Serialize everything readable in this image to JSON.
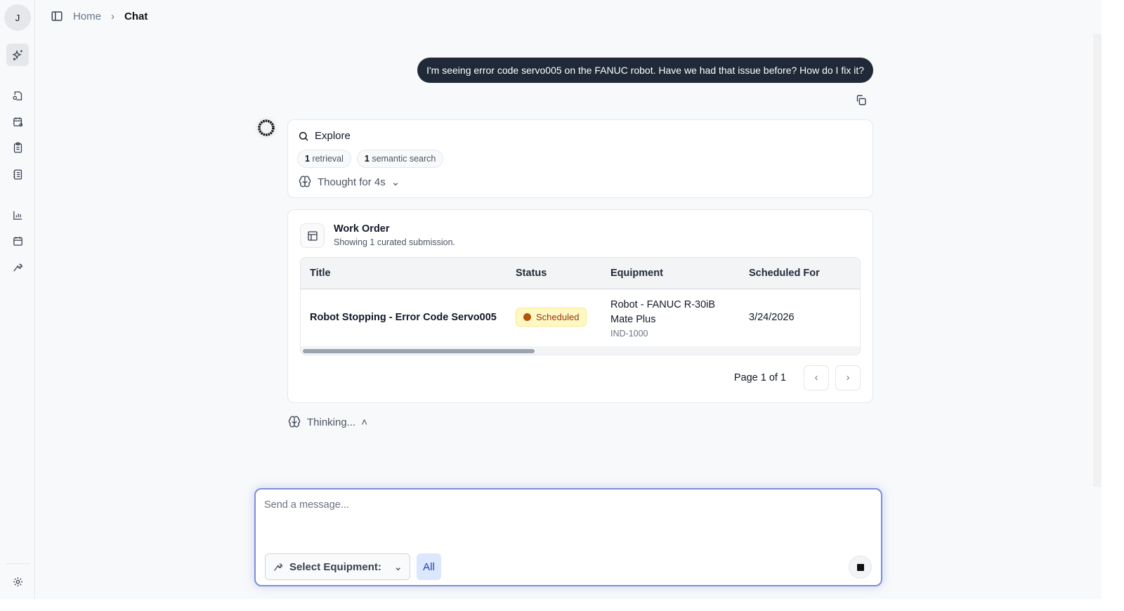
{
  "sidebar": {
    "avatar_initial": "J",
    "items": [
      {
        "icon": "sparkles-icon",
        "active": true
      },
      {
        "icon": "file-settings-icon"
      },
      {
        "icon": "calendar-settings-icon"
      },
      {
        "icon": "clipboard-list-icon"
      },
      {
        "icon": "notebook-icon"
      },
      {
        "icon": "bar-chart-icon"
      },
      {
        "icon": "calendar-icon"
      },
      {
        "icon": "wrench-icon"
      },
      {
        "icon": "gear-icon"
      }
    ]
  },
  "breadcrumb": {
    "home": "Home",
    "current": "Chat"
  },
  "chat": {
    "user_message": "I'm seeing error code servo005 on the FANUC robot. Have we had that issue before? How do I fix it?",
    "explore": {
      "title": "Explore",
      "chips": [
        {
          "count": "1",
          "label": "retrieval"
        },
        {
          "count": "1",
          "label": "semantic search"
        }
      ],
      "thought": "Thought for 4s"
    },
    "work_order": {
      "title": "Work Order",
      "subtitle": "Showing 1 curated submission.",
      "columns": [
        "Title",
        "Status",
        "Equipment",
        "Scheduled For"
      ],
      "rows": [
        {
          "title": "Robot Stopping - Error Code Servo005",
          "status": "Scheduled",
          "equipment": "Robot - FANUC R-30iB Mate Plus",
          "equipment_line1": "Robot - FANUC R-30iB",
          "equipment_line2": "Mate Plus",
          "equipment_id": "IND-1000",
          "scheduled_for": "3/24/2026"
        }
      ],
      "pagination": "Page 1 of 1"
    },
    "thinking": "Thinking..."
  },
  "composer": {
    "placeholder": "Send a message...",
    "equipment_select": "Select Equipment:",
    "filter": "All"
  },
  "colors": {
    "status_scheduled": "#b45309",
    "user_bubble": "#1f2937",
    "focus_ring": "#7b8fd6"
  }
}
